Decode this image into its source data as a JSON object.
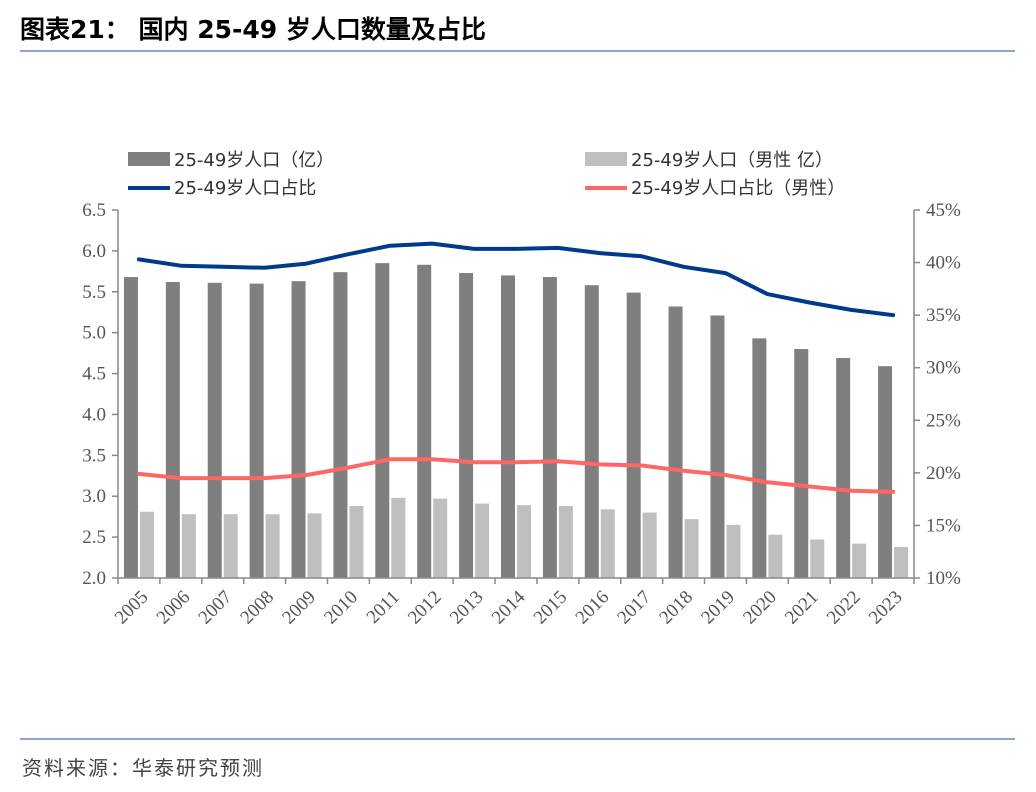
{
  "title": "图表21：  国内 25-49 岁人口数量及占比",
  "source": "资料来源：华泰研究预测",
  "chart_data": {
    "type": "bar",
    "categories": [
      "2005",
      "2006",
      "2007",
      "2008",
      "2009",
      "2010",
      "2011",
      "2012",
      "2013",
      "2014",
      "2015",
      "2016",
      "2017",
      "2018",
      "2019",
      "2020",
      "2021",
      "2022",
      "2023"
    ],
    "series": [
      {
        "name": "25-49岁人口（亿）",
        "type": "bar",
        "axis": "left",
        "color": "#7f7f7f",
        "values": [
          5.68,
          5.62,
          5.61,
          5.6,
          5.63,
          5.74,
          5.85,
          5.83,
          5.73,
          5.7,
          5.68,
          5.58,
          5.49,
          5.32,
          5.21,
          4.93,
          4.8,
          4.69,
          4.59
        ]
      },
      {
        "name": "25-49岁人口（男性 亿）",
        "type": "bar",
        "axis": "left",
        "color": "#bfbfbf",
        "values": [
          2.81,
          2.78,
          2.78,
          2.78,
          2.79,
          2.88,
          2.98,
          2.97,
          2.91,
          2.89,
          2.88,
          2.84,
          2.8,
          2.72,
          2.65,
          2.53,
          2.47,
          2.42,
          2.38
        ]
      },
      {
        "name": "25-49岁人口占比",
        "type": "line",
        "axis": "right",
        "color": "#003a8c",
        "values": [
          40.3,
          39.7,
          39.6,
          39.5,
          39.9,
          40.8,
          41.6,
          41.8,
          41.3,
          41.3,
          41.4,
          40.9,
          40.6,
          39.6,
          39.0,
          37.0,
          36.2,
          35.5,
          35.0
        ]
      },
      {
        "name": "25-49岁人口占比（男性）",
        "type": "line",
        "axis": "right",
        "color": "#ff6666",
        "values": [
          19.9,
          19.5,
          19.5,
          19.5,
          19.8,
          20.5,
          21.3,
          21.3,
          21.0,
          21.0,
          21.1,
          20.8,
          20.7,
          20.2,
          19.8,
          19.1,
          18.7,
          18.3,
          18.2
        ]
      }
    ],
    "y_left": {
      "min": 2.0,
      "max": 6.5,
      "ticks": [
        "2.0",
        "2.5",
        "3.0",
        "3.5",
        "4.0",
        "4.5",
        "5.0",
        "5.5",
        "6.0",
        "6.5"
      ]
    },
    "y_right": {
      "min": 10,
      "max": 45,
      "ticks": [
        "10%",
        "15%",
        "20%",
        "25%",
        "30%",
        "35%",
        "40%",
        "45%"
      ]
    },
    "legend_position": "top",
    "grid": false
  }
}
